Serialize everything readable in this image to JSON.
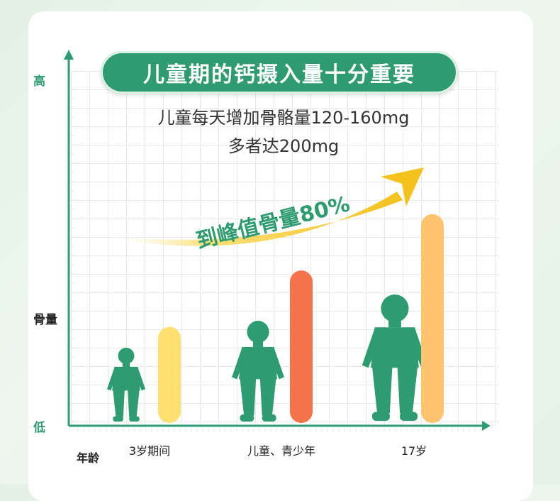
{
  "title": "儿童期的钙摄入量十分重要",
  "subtitle_lines": [
    "儿童每天增加骨骼量120-160mg",
    "多者达200mg"
  ],
  "annotation": "到峰值骨量80%",
  "colors": {
    "brand_green": "#2f9b72",
    "bar_yellow": "#ffe070",
    "bar_orange": "#f5734a",
    "bar_peach": "#ffc56e",
    "arrow_yellow": "#f3c21e"
  },
  "chart_data": {
    "type": "bar",
    "title": "儿童期的钙摄入量十分重要",
    "xlabel": "年龄",
    "ylabel": "骨量",
    "ylabel_high": "高",
    "ylabel_low": "低",
    "categories": [
      "3岁期间",
      "儿童、青少年",
      "17岁"
    ],
    "values": [
      29,
      46,
      63
    ],
    "ylim": [
      0,
      100
    ],
    "grid": true,
    "annotations": [
      "到峰值骨量80%"
    ]
  }
}
